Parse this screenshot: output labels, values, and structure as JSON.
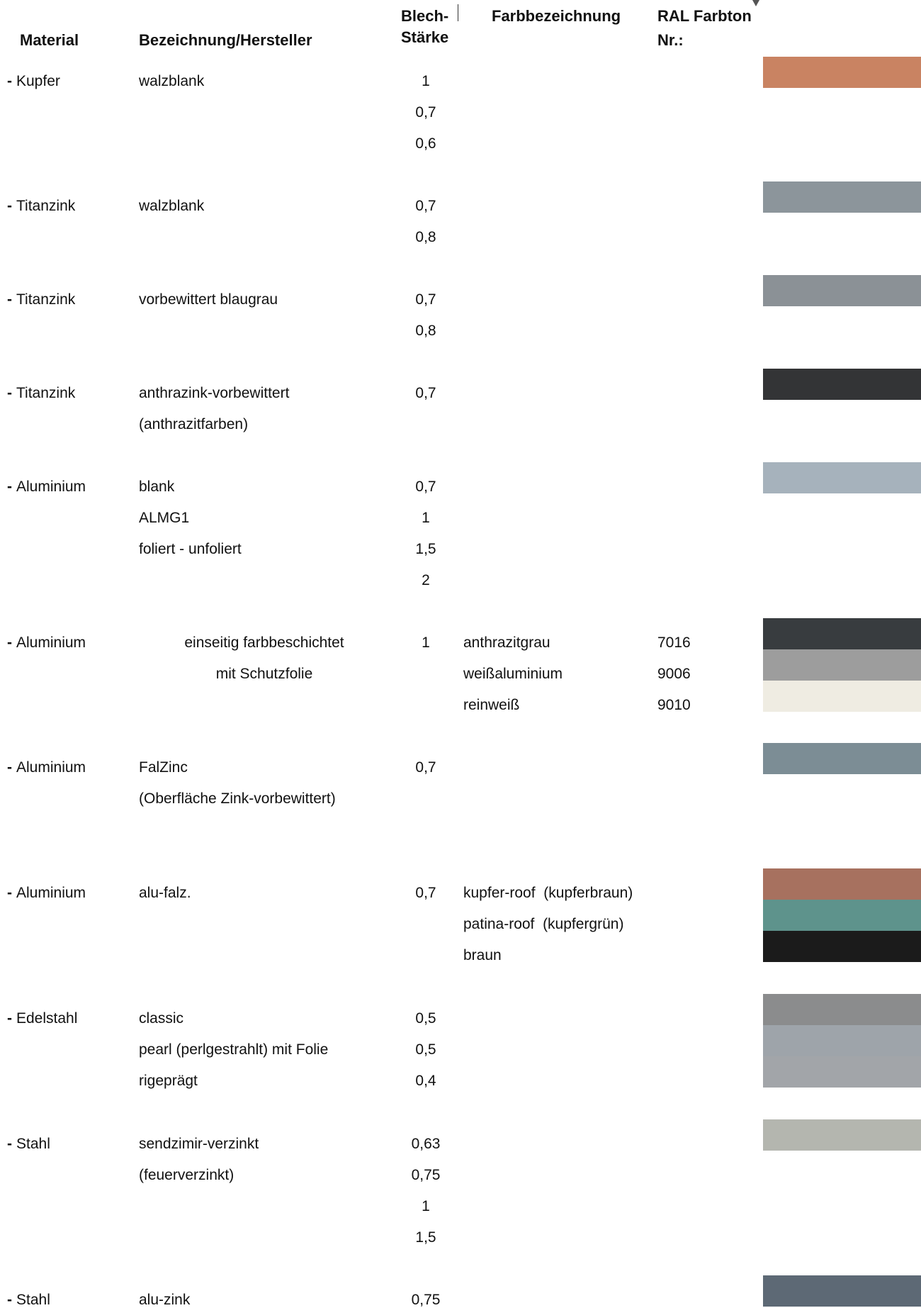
{
  "header": {
    "material": "Material",
    "bezeichnung": "Bezeichnung/Hersteller",
    "staerke_line1": "Blech-",
    "staerke_line2": "Stärke",
    "farbbezeichnung": "Farbbezeichnung",
    "ral_line1": "RAL Farbton",
    "ral_line2": "Nr.:"
  },
  "rows": [
    {
      "material": "Kupfer",
      "bez": [
        "walzblank"
      ],
      "staerke": [
        "1",
        "0,7",
        "0,6"
      ],
      "farbe": [],
      "ral": [],
      "swatches": [
        "#c98362"
      ]
    },
    {
      "material": "Titanzink",
      "bez": [
        "walzblank"
      ],
      "staerke": [
        "0,7",
        "0,8"
      ],
      "farbe": [],
      "ral": [],
      "swatches": [
        "#8c959b"
      ]
    },
    {
      "material": "Titanzink",
      "bez": [
        "vorbewittert blaugrau"
      ],
      "staerke": [
        "0,7",
        "0,8"
      ],
      "farbe": [],
      "ral": [],
      "swatches": [
        "#8b9196"
      ]
    },
    {
      "material": "Titanzink",
      "bez": [
        "anthrazink-vorbewittert",
        "(anthrazitfarben)"
      ],
      "staerke": [
        "0,7"
      ],
      "farbe": [],
      "ral": [],
      "swatches": [
        "#333436"
      ]
    },
    {
      "material": "Aluminium",
      "bez": [
        "blank",
        "ALMG1",
        "foliert - unfoliert"
      ],
      "staerke": [
        "0,7",
        "1",
        "1,5",
        "2"
      ],
      "farbe": [],
      "ral": [],
      "swatches": [
        "#a6b2bc"
      ]
    },
    {
      "material": "Aluminium",
      "bez": [
        "einseitig farbbeschichtet",
        "mit Schutzfolie"
      ],
      "staerke": [
        "1"
      ],
      "farbe": [
        "anthrazitgrau",
        "weißaluminium",
        "reinweiß"
      ],
      "ral": [
        "7016",
        "9006",
        "9010"
      ],
      "swatches": [
        "#383c3f",
        "#9d9d9d",
        "#efece2"
      ]
    },
    {
      "material": "Aluminium",
      "bez": [
        "FalZinc",
        "(Oberfläche Zink-vorbewittert)"
      ],
      "staerke": [
        "0,7"
      ],
      "farbe": [],
      "ral": [],
      "swatches": [
        "#7c8d95"
      ]
    },
    {
      "material": "Aluminium",
      "bez": [
        "alu-falz."
      ],
      "staerke": [
        "0,7"
      ],
      "farbe": [
        "kupfer-roof  (kupferbraun)",
        "patina-roof  (kupfergrün)",
        "braun"
      ],
      "ral": [],
      "swatches": [
        "#a7715f",
        "#5e938c",
        "#1b1b1b"
      ]
    },
    {
      "material": "Edelstahl",
      "bez": [
        "classic",
        "pearl (perlgestrahlt) mit Folie",
        "rigeprägt"
      ],
      "staerke": [
        "0,5",
        "0,5",
        "0,4"
      ],
      "farbe": [],
      "ral": [],
      "swatches": [
        "#8b8c8d",
        "#9ea4aa",
        "#a2a5a9"
      ]
    },
    {
      "material": "Stahl",
      "bez": [
        "sendzimir-verzinkt",
        "(feuerverzinkt)"
      ],
      "staerke": [
        "0,63",
        "0,75",
        "1",
        "1,5"
      ],
      "farbe": [],
      "ral": [],
      "swatches": [
        "#b4b6af"
      ]
    },
    {
      "material": "Stahl",
      "bez": [
        "alu-zink"
      ],
      "staerke": [
        "0,75"
      ],
      "farbe": [],
      "ral": [],
      "swatches": [
        "#5d6975"
      ]
    }
  ]
}
